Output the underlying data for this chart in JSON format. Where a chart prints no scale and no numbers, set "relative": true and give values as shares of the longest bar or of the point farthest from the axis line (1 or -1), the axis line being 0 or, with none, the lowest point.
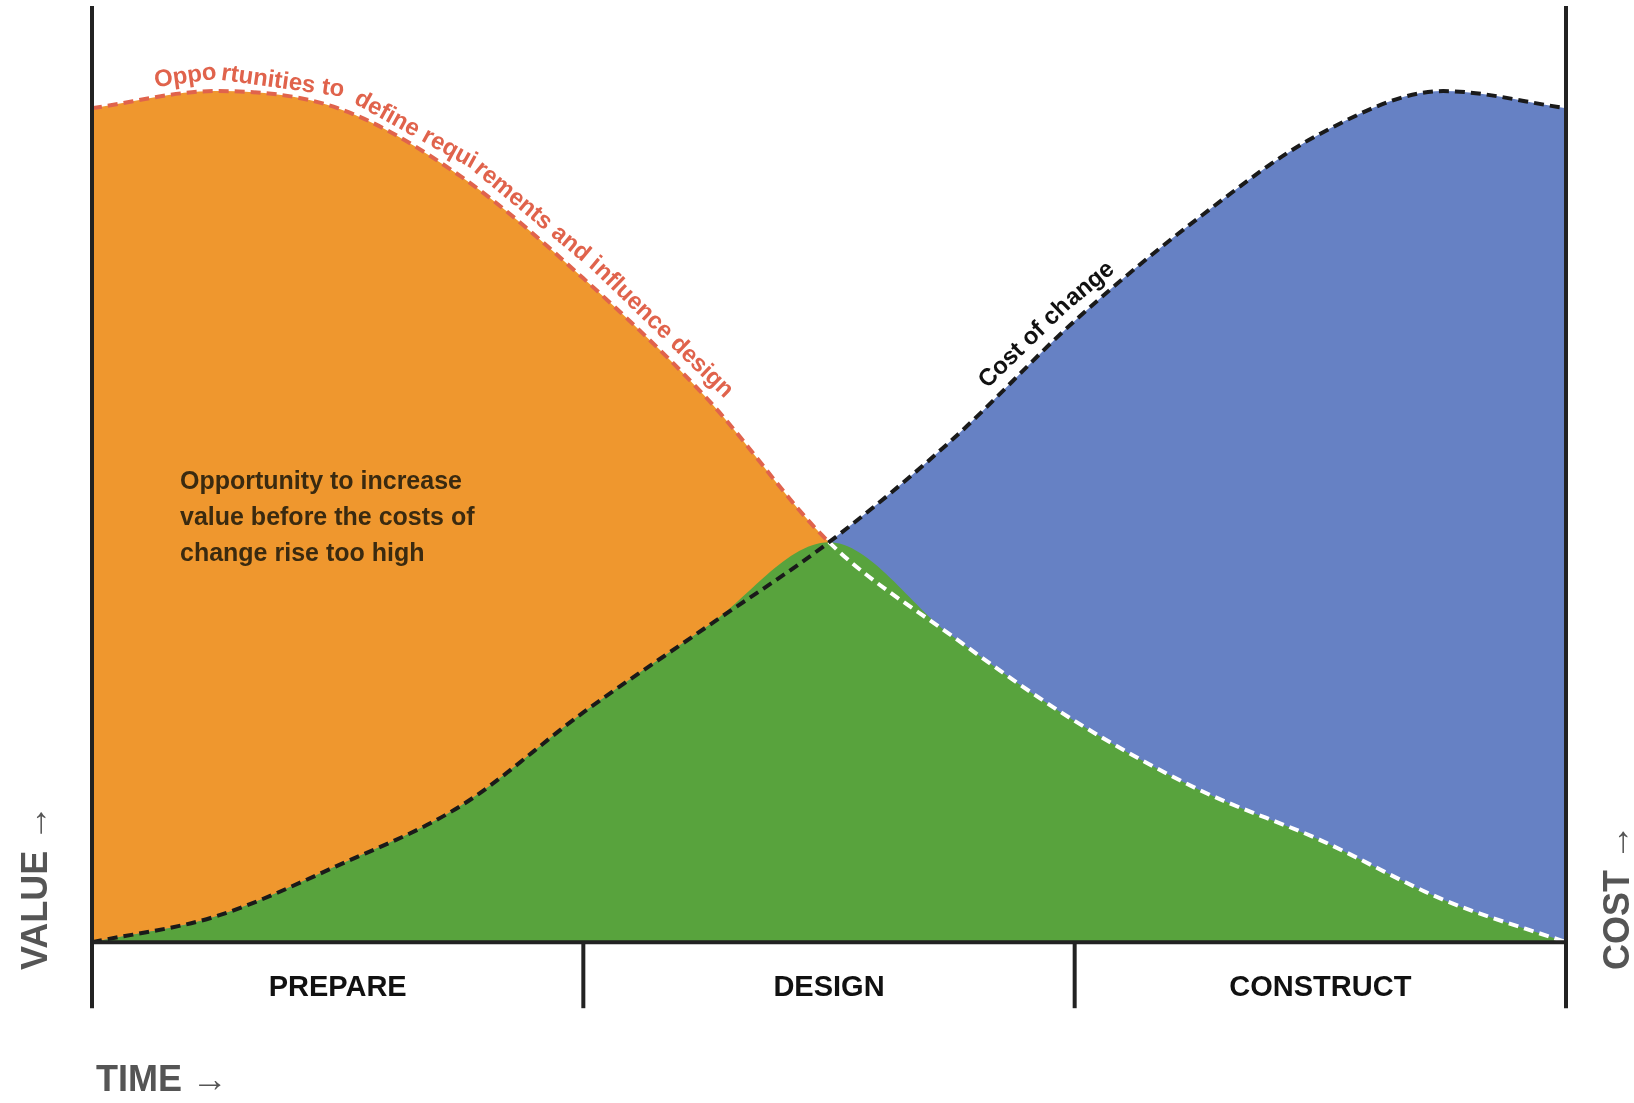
{
  "chart_data": {
    "type": "area",
    "relative": true,
    "xlabel": "TIME →",
    "ylabel": "VALUE →",
    "y2label": "COST →",
    "categories": [
      null,
      null,
      "PREPARE",
      null,
      null,
      null,
      "DESIGN",
      null,
      null,
      null,
      "CONSTRUCT",
      null,
      null
    ],
    "series": [
      {
        "name": "Opportunities to define requirements and influence design",
        "color": "#ef972e",
        "values": [
          0.98,
          1.0,
          0.98,
          0.9,
          0.78,
          0.64,
          0.47,
          0.36,
          0.26,
          0.18,
          0.12,
          0.05,
          0
        ]
      },
      {
        "name": "Cost of change",
        "color": "#6681c4",
        "values": [
          0,
          0.03,
          0.09,
          0.16,
          0.27,
          0.37,
          0.47,
          0.59,
          0.73,
          0.85,
          0.95,
          1.0,
          0.98
        ]
      },
      {
        "color": "#58a33d",
        "values": [
          0,
          0.03,
          0.09,
          0.16,
          0.27,
          0.37,
          0.47,
          0.36,
          0.26,
          0.18,
          0.12,
          0.05,
          0
        ]
      }
    ],
    "line_style": "dashed",
    "marker": "none",
    "grid": false,
    "legend": false,
    "annotations": [
      "Opportunity to increase value before the costs of change rise too high"
    ]
  }
}
